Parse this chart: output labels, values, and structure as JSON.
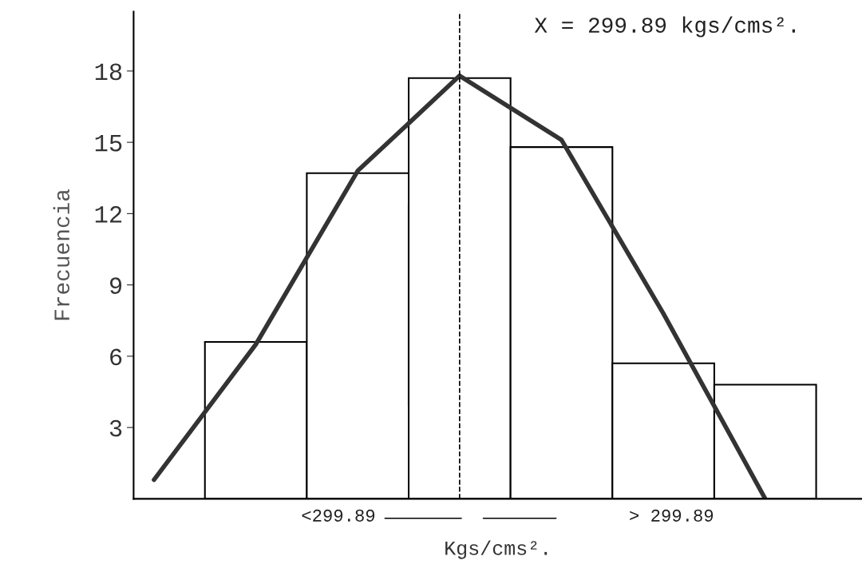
{
  "chart_data": {
    "type": "bar",
    "categories": [
      null,
      null,
      null,
      null,
      null,
      null,
      null
    ],
    "series": [
      {
        "color": "#ffffff",
        "values": [
          null,
          6.6,
          13.7,
          17.7,
          14.8,
          5.7,
          4.8
        ]
      },
      {
        "type": "line",
        "color": "#333333",
        "values": [
          0.8,
          6.5,
          13.8,
          17.8,
          15.1,
          7.8,
          0
        ]
      }
    ],
    "ylim": [
      0,
      20.5
    ],
    "yticks": [
      3,
      6,
      9,
      12,
      15,
      18
    ],
    "xlabel": "Kgs/cms².",
    "ylabel": "Frecuencia",
    "annotations": [
      "X = 299.89 kgs/cms².",
      "<299.89",
      "> 299.89"
    ],
    "grid": false,
    "legend": false,
    "line_style": "solid",
    "marker": "none"
  }
}
